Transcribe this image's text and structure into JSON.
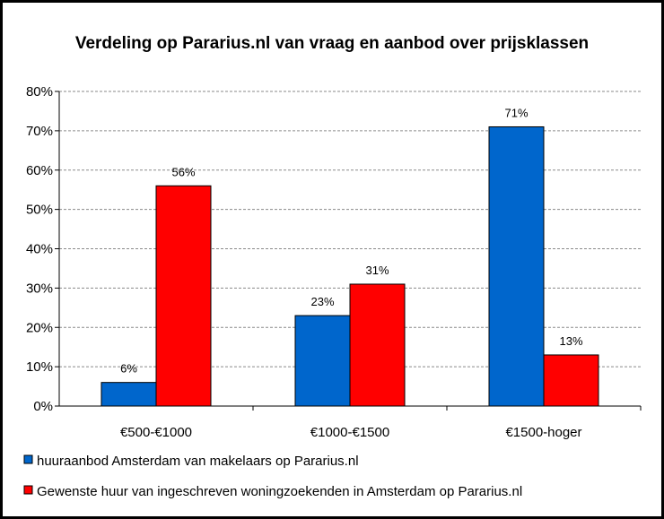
{
  "chart_data": {
    "type": "bar",
    "title": "Verdeling  op Pararius.nl van vraag en aanbod over prijsklassen",
    "xlabel": "",
    "ylabel": "",
    "categories": [
      "€500-€1000",
      "€1000-€1500",
      "€1500-hoger"
    ],
    "ylim": [
      0,
      80
    ],
    "yticks": [
      0,
      10,
      20,
      30,
      40,
      50,
      60,
      70,
      80
    ],
    "ytick_labels": [
      "0%",
      "10%",
      "20%",
      "30%",
      "40%",
      "50%",
      "60%",
      "70%",
      "80%"
    ],
    "grid": true,
    "legend_position": "bottom",
    "series": [
      {
        "name": "huuraanbod Amsterdam van makelaars op Pararius.nl",
        "color": "#0066CC",
        "values": [
          6,
          23,
          71
        ],
        "labels": [
          "6%",
          "23%",
          "71%"
        ]
      },
      {
        "name": "Gewenste huur van ingeschreven woningzoekenden in Amsterdam op  Pararius.nl",
        "color": "#FF0000",
        "values": [
          56,
          31,
          13
        ],
        "labels": [
          "56%",
          "31%",
          "13%"
        ]
      }
    ]
  }
}
